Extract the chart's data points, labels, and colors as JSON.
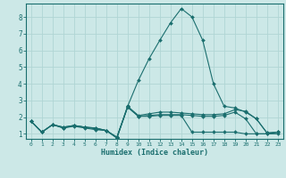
{
  "xlabel": "Humidex (Indice chaleur)",
  "bg_color": "#cce8e7",
  "grid_color": "#b0d5d4",
  "line_color": "#1a6e6e",
  "xlim": [
    -0.5,
    23.5
  ],
  "ylim": [
    0.7,
    8.8
  ],
  "yticks": [
    1,
    2,
    3,
    4,
    5,
    6,
    7,
    8
  ],
  "xticks": [
    0,
    1,
    2,
    3,
    4,
    5,
    6,
    7,
    8,
    9,
    10,
    11,
    12,
    13,
    14,
    15,
    16,
    17,
    18,
    19,
    20,
    21,
    22,
    23
  ],
  "lines": [
    {
      "x": [
        0,
        1,
        2,
        3,
        4,
        5,
        6,
        7,
        8,
        9,
        10,
        11,
        12,
        13,
        14,
        15,
        16,
        17,
        18,
        19,
        20,
        21,
        22,
        23
      ],
      "y": [
        1.75,
        1.1,
        1.55,
        1.35,
        1.45,
        1.35,
        1.25,
        1.2,
        0.75,
        2.6,
        2.05,
        2.05,
        2.1,
        2.1,
        2.1,
        1.1,
        1.1,
        1.1,
        1.1,
        1.1,
        1.0,
        1.0,
        1.0,
        1.0
      ]
    },
    {
      "x": [
        0,
        1,
        2,
        3,
        4,
        5,
        6,
        7,
        8,
        9,
        10,
        11,
        12,
        13,
        14,
        15,
        16,
        17,
        18,
        19,
        20,
        21,
        22,
        23
      ],
      "y": [
        1.75,
        1.1,
        1.55,
        1.35,
        1.5,
        1.4,
        1.3,
        1.2,
        0.8,
        2.6,
        2.05,
        2.1,
        2.15,
        2.15,
        2.15,
        2.1,
        2.05,
        2.05,
        2.1,
        2.3,
        1.9,
        1.0,
        1.0,
        1.1
      ]
    },
    {
      "x": [
        0,
        1,
        2,
        3,
        4,
        5,
        6,
        7,
        8,
        9,
        10,
        11,
        12,
        13,
        14,
        15,
        16,
        17,
        18,
        19,
        20,
        21,
        22,
        23
      ],
      "y": [
        1.75,
        1.1,
        1.55,
        1.4,
        1.5,
        1.4,
        1.35,
        1.2,
        0.8,
        2.65,
        2.1,
        2.2,
        2.3,
        2.3,
        2.25,
        2.2,
        2.15,
        2.15,
        2.2,
        2.45,
        2.35,
        1.9,
        1.05,
        1.1
      ]
    },
    {
      "x": [
        0,
        1,
        2,
        3,
        4,
        5,
        6,
        7,
        8,
        9,
        10,
        11,
        12,
        13,
        14,
        15,
        16,
        17,
        18,
        19,
        20,
        21,
        22,
        23
      ],
      "y": [
        1.75,
        1.1,
        1.55,
        1.4,
        1.5,
        1.4,
        1.35,
        1.2,
        0.75,
        2.65,
        4.2,
        5.5,
        6.6,
        7.65,
        8.5,
        8.0,
        6.6,
        4.0,
        2.65,
        2.55,
        2.3,
        1.9,
        1.05,
        1.1
      ]
    }
  ]
}
